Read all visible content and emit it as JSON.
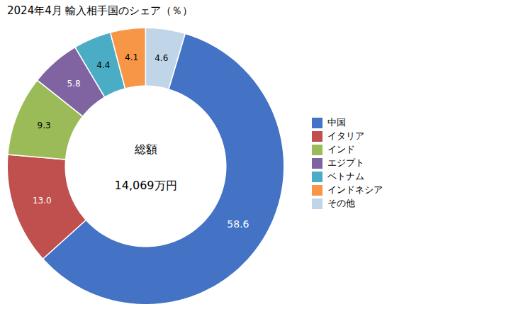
{
  "chart_data": {
    "type": "donut",
    "title": "2024年4月 輸入相手国のシェア（％）",
    "categories": [
      "中国",
      "イタリア",
      "インド",
      "エジプト",
      "ベトナム",
      "インドネシア",
      "その他"
    ],
    "values": [
      58.6,
      13.0,
      9.3,
      5.8,
      4.4,
      4.1,
      4.6
    ],
    "value_labels": [
      "58.6",
      "13.0",
      "9.3",
      "5.8",
      "4.4",
      "4.1",
      "4.6"
    ],
    "colors": [
      "#4472C4",
      "#C0504D",
      "#9BBB59",
      "#8064A2",
      "#4BACC6",
      "#F79646",
      "#C0D5E8"
    ],
    "annotations": [
      "総額",
      "14,069万円"
    ],
    "data_labels": true,
    "legend": "right"
  }
}
